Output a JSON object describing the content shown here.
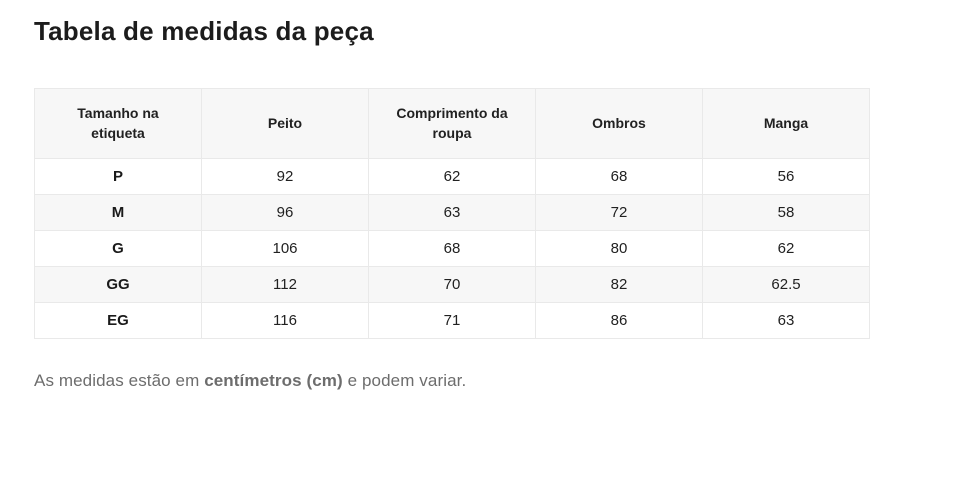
{
  "title": "Tabela de medidas da peça",
  "table": {
    "columns": [
      "Tamanho na etiqueta",
      "Peito",
      "Comprimento da roupa",
      "Ombros",
      "Manga"
    ],
    "rows": [
      [
        "P",
        "92",
        "62",
        "68",
        "56"
      ],
      [
        "M",
        "96",
        "63",
        "72",
        "58"
      ],
      [
        "G",
        "106",
        "68",
        "80",
        "62"
      ],
      [
        "GG",
        "112",
        "70",
        "82",
        "62.5"
      ],
      [
        "EG",
        "116",
        "71",
        "86",
        "63"
      ]
    ],
    "unit": "cm"
  },
  "footnote": {
    "text_before": "As medidas estão em ",
    "bold_text": "centímetros (cm)",
    "text_after": " e podem variar."
  },
  "colors": {
    "header_bg": "#f7f7f7",
    "stripe_bg": "#f7f7f7",
    "border": "#e9e9e9",
    "title_text": "#1c1c1c",
    "body_text": "#212121",
    "footnote_text": "#6d6d6d"
  }
}
